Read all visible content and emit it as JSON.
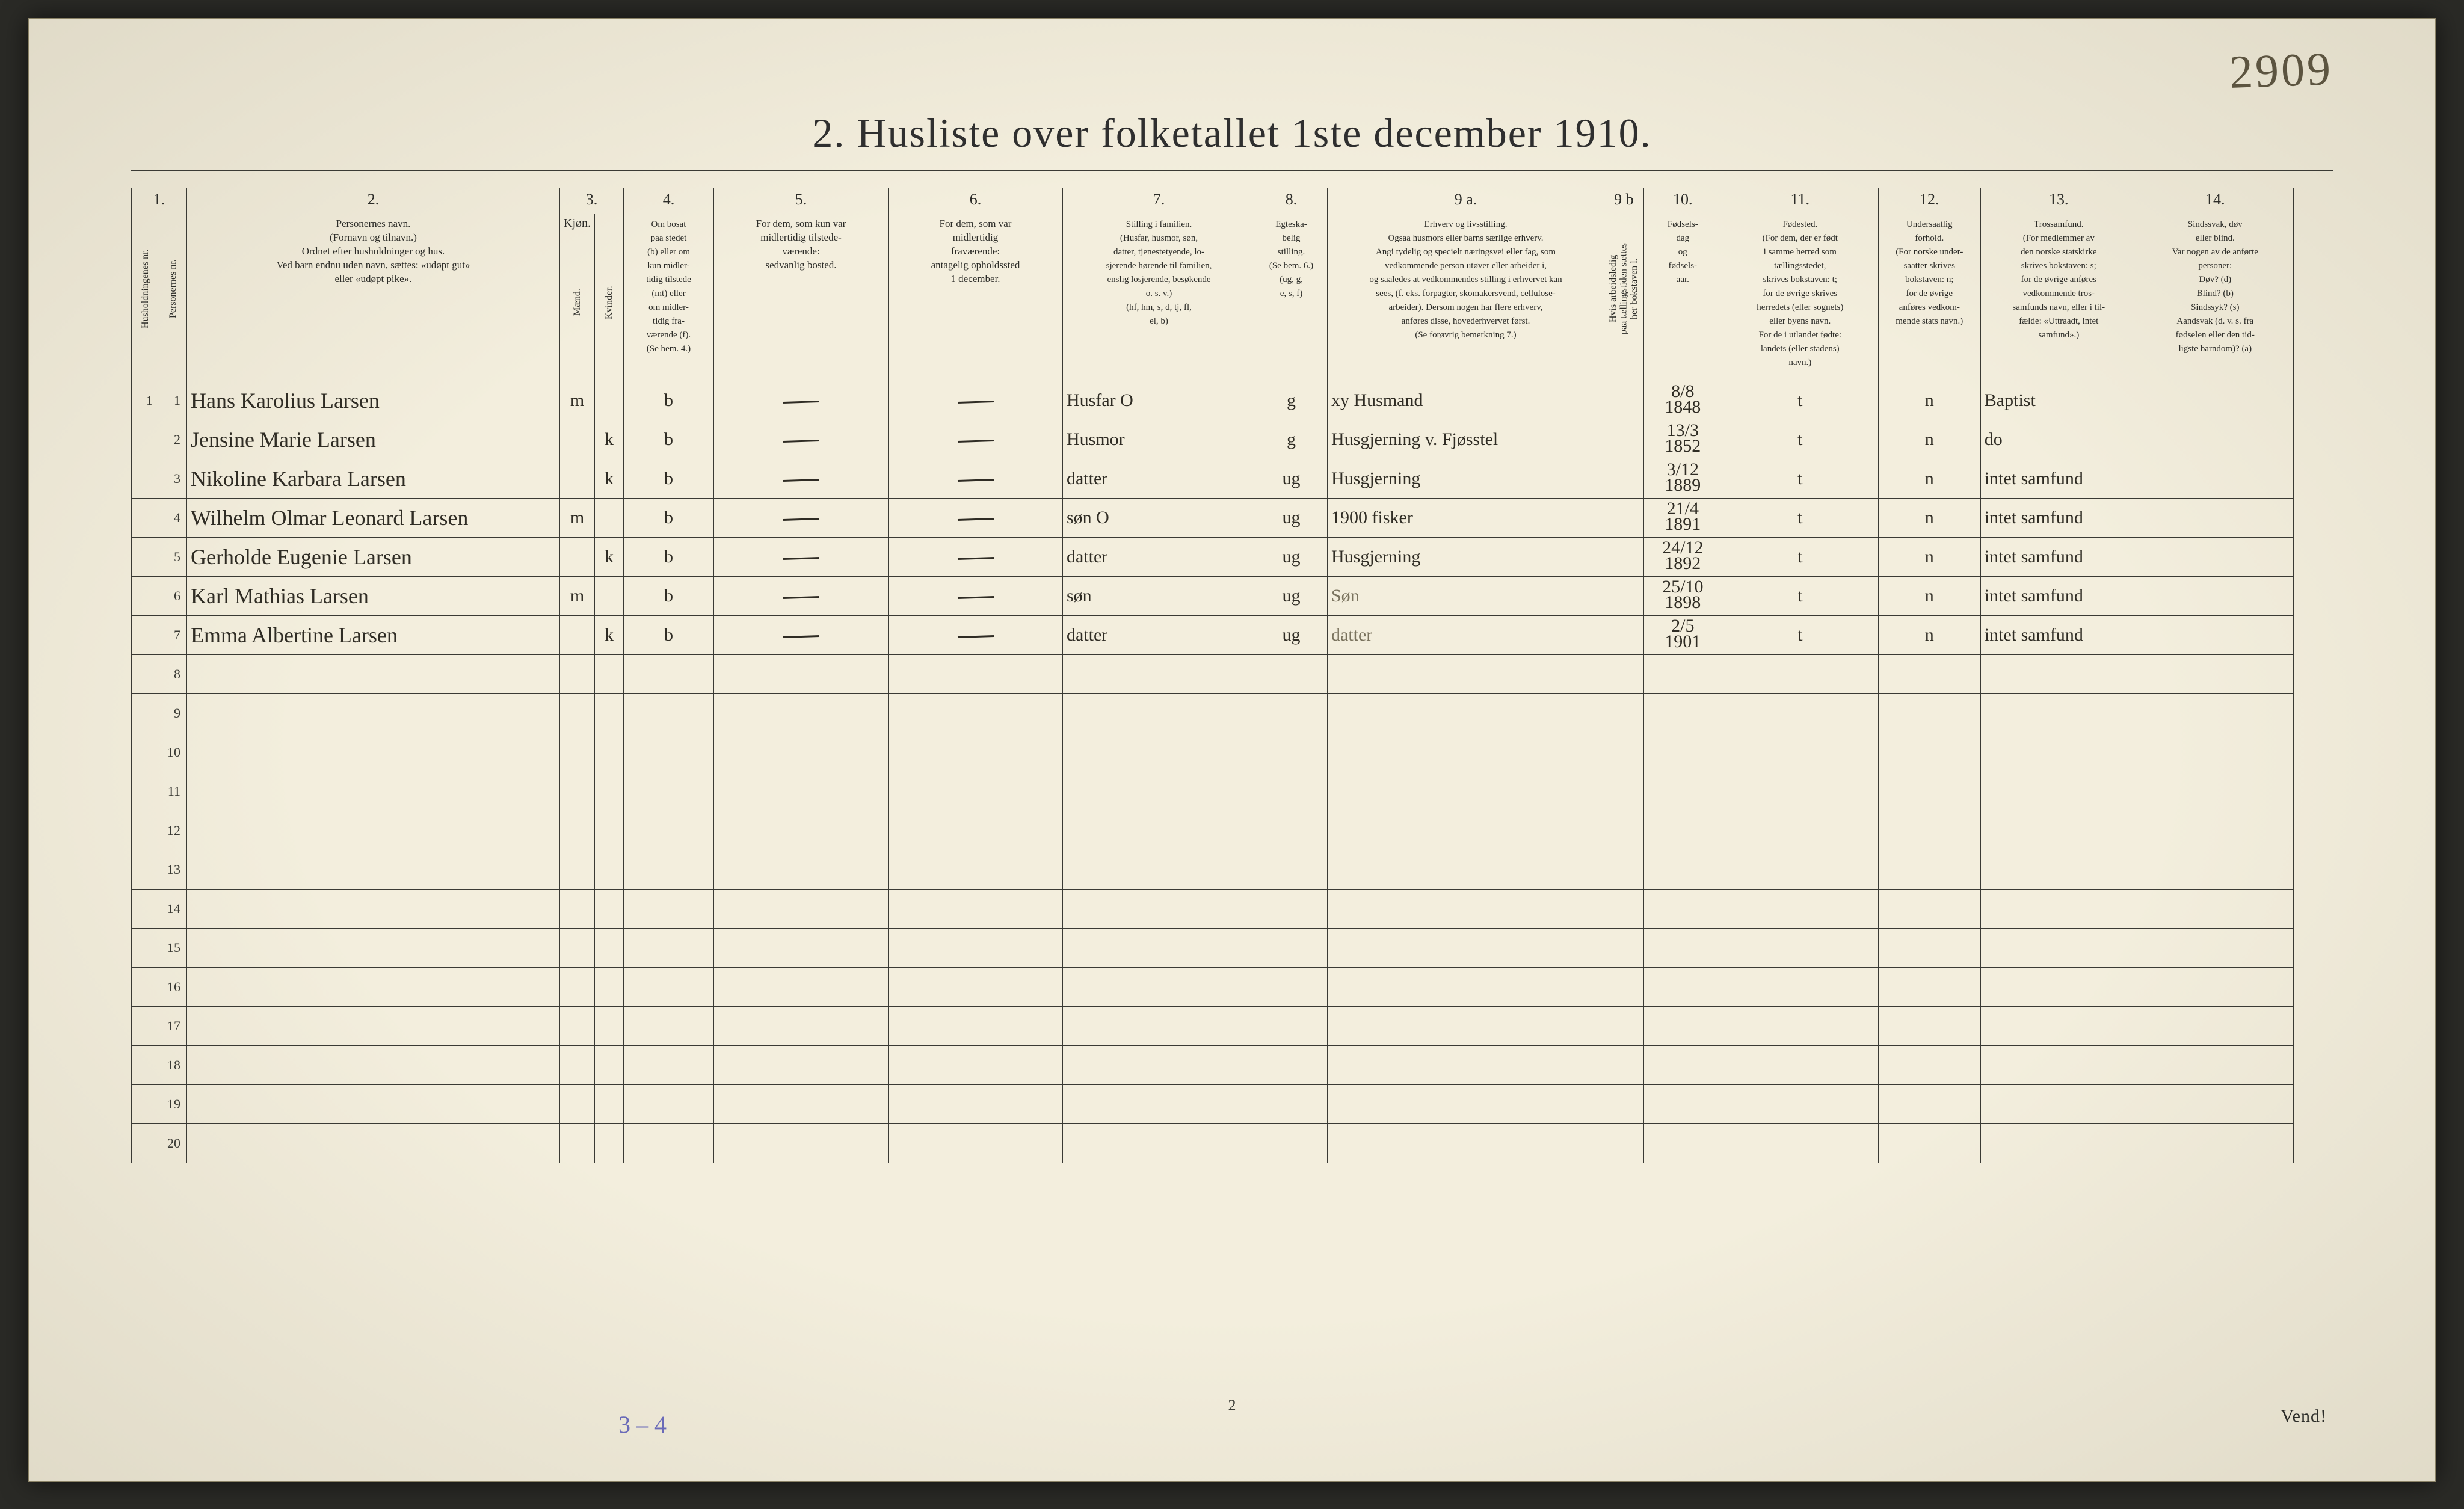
{
  "title": "2.  Husliste over folketallet 1ste december 1910.",
  "topright_handnote": "2909",
  "margin_note": "3 – 4",
  "footer_page": "2",
  "footer_vend": "Vend!",
  "colnums": [
    "1.",
    "",
    "2.",
    "3.",
    "",
    "4.",
    "5.",
    "6.",
    "7.",
    "8.",
    "9 a.",
    "9 b",
    "10.",
    "11.",
    "12.",
    "13.",
    "14."
  ],
  "headers": {
    "c1": "Husholdningenes nr.",
    "c1b": "Personernes nr.",
    "c2": "Personernes navn.\n(Fornavn og tilnavn.)\nOrdnet efter husholdninger og hus.\nVed barn endnu uden navn, sættes: «udøpt gut»\neller «udøpt pike».",
    "c3": "Kjøn.",
    "c3m": "Mænd.",
    "c3k": "Kvinder.",
    "c4": "Om bosat\npaa stedet\n(b) eller om\nkun midler-\ntidig tilstede\n(mt) eller\nom midler-\ntidig fra-\nværende (f).\n(Se bem. 4.)",
    "c5": "For dem, som kun var\nmidlertidig tilstede-\nværende:\nsedvanlig bosted.",
    "c6": "For dem, som var\nmidlertidig\nfraværende:\nantagelig opholdssted\n1 december.",
    "c7": "Stilling i familien.\n(Husfar, husmor, søn,\ndatter, tjenestetyende, lo-\nsjerende hørende til familien,\nenslig losjerende, besøkende\no. s. v.)\n(hf, hm, s, d, tj, fl,\nel, b)",
    "c8": "Egteska-\nbelig\nstilling.\n(Se bem. 6.)\n(ug, g,\ne, s, f)",
    "c9a": "Erhverv og livsstilling.\nOgsaa husmors eller barns særlige erhverv.\nAngi tydelig og specielt næringsvei eller fag, som\nvedkommende person utøver eller arbeider i,\nog saaledes at vedkommendes stilling i erhvervet kan\nsees, (f. eks. forpagter, skomakersvend, cellulose-\narbeider). Dersom nogen har flere erhverv,\nanføres disse, hovederhvervet først.\n(Se forøvrig bemerkning 7.)",
    "c9b": "Hvis arbeidsledig\npaa tællingstiden sættes\nher bokstaven l.",
    "c10": "Fødsels-\ndag\nog\nfødsels-\naar.",
    "c11": "Fødested.\n(For dem, der er født\ni samme herred som\ntællingsstedet,\nskrives bokstaven: t;\nfor de øvrige skrives\nherredets (eller sognets)\neller byens navn.\nFor de i utlandet fødte:\nlandets (eller stadens)\nnavn.)",
    "c12": "Undersaatlig\nforhold.\n(For norske under-\nsaatter skrives\nbokstaven: n;\nfor de øvrige\nanføres vedkom-\nmende stats navn.)",
    "c13": "Trossamfund.\n(For medlemmer av\nden norske statskirke\nskrives bokstaven: s;\nfor de øvrige anføres\nvedkommende tros-\nsamfunds navn, eller i til-\nfælde: «Uttraadt, intet\nsamfund».)",
    "c14": "Sindssvak, døv\neller blind.\nVar nogen av de anførte\npersoner:\nDøv?        (d)\nBlind?      (b)\nSindssyk?  (s)\nAandsvak (d. v. s. fra\nfødselen eller den tid-\nligste barndom)?  (a)"
  },
  "rows": [
    {
      "hush": "1",
      "pers": "1",
      "navn": "Hans Karolius Larsen",
      "mk": "m",
      "bosat": "b",
      "c5": "—",
      "c6": "—",
      "fam": "Husfar  O",
      "egte": "g",
      "erhverv": "xy   Husmand",
      "fdato": "8/8 1848",
      "fsted": "t",
      "under": "n",
      "tros": "Baptist",
      "svak": ""
    },
    {
      "hush": "",
      "pers": "2",
      "navn": "Jensine Marie Larsen",
      "mk": "k",
      "bosat": "b",
      "c5": "—",
      "c6": "—",
      "fam": "Husmor",
      "egte": "g",
      "erhverv": "Husgjerning v. Fjøsstel",
      "fdato": "13/3 1852",
      "fsted": "t",
      "under": "n",
      "tros": "do",
      "svak": ""
    },
    {
      "hush": "",
      "pers": "3",
      "navn": "Nikoline Karbara Larsen",
      "mk": "k",
      "bosat": "b",
      "c5": "—",
      "c6": "—",
      "fam": "datter",
      "egte": "ug",
      "erhverv": "Husgjerning",
      "fdato": "3/12 1889",
      "fsted": "t",
      "under": "n",
      "tros": "intet samfund",
      "svak": ""
    },
    {
      "hush": "",
      "pers": "4",
      "navn": "Wilhelm Olmar Leonard Larsen",
      "mk": "m",
      "bosat": "b",
      "c5": "—",
      "c6": "—",
      "fam": "søn  O",
      "egte": "ug",
      "erhverv": "1900   fisker",
      "fdato": "21/4 1891",
      "fsted": "t",
      "under": "n",
      "tros": "intet samfund",
      "svak": ""
    },
    {
      "hush": "",
      "pers": "5",
      "navn": "Gerholde Eugenie Larsen",
      "mk": "k",
      "bosat": "b",
      "c5": "—",
      "c6": "—",
      "fam": "datter",
      "egte": "ug",
      "erhverv": "Husgjerning",
      "fdato": "24/12 1892",
      "fsted": "t",
      "under": "n",
      "tros": "intet samfund",
      "svak": ""
    },
    {
      "hush": "",
      "pers": "6",
      "navn": "Karl Mathias Larsen",
      "mk": "m",
      "bosat": "b",
      "c5": "—",
      "c6": "—",
      "fam": "søn",
      "egte": "ug",
      "erhverv": "Søn",
      "fdato": "25/10 1898",
      "fsted": "t",
      "under": "n",
      "tros": "intet samfund",
      "svak": ""
    },
    {
      "hush": "",
      "pers": "7",
      "navn": "Emma Albertine Larsen",
      "mk": "k",
      "bosat": "b",
      "c5": "—",
      "c6": "—",
      "fam": "datter",
      "egte": "ug",
      "erhverv": "datter",
      "fdato": "2/5 1901",
      "fsted": "t",
      "under": "n",
      "tros": "intet samfund",
      "svak": ""
    }
  ],
  "blank_row_numbers": [
    "8",
    "9",
    "10",
    "11",
    "12",
    "13",
    "14",
    "15",
    "16",
    "17",
    "18",
    "19",
    "20"
  ]
}
